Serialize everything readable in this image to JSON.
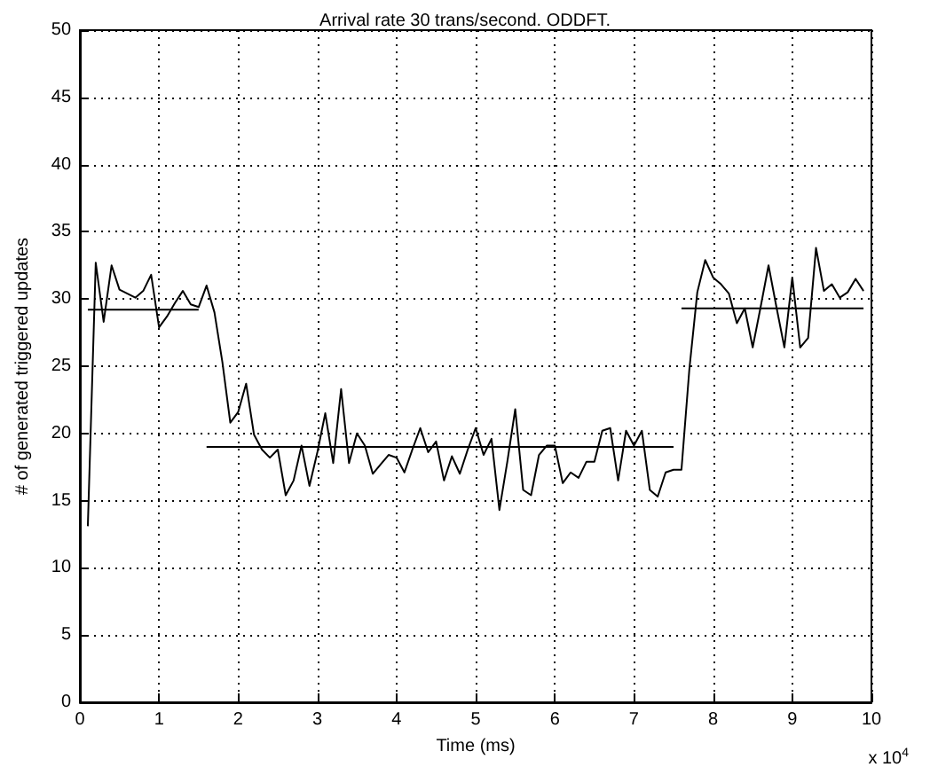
{
  "chart_data": {
    "type": "line",
    "title": "Arrival rate 30 trans/second. ODDFT.",
    "xlabel": "Time (ms)",
    "ylabel": "# of generated triggered updates",
    "annotations": [
      "x 10$^{4}$"
    ],
    "xlim": [
      0,
      10
    ],
    "xticks": [
      0,
      1,
      2,
      3,
      4,
      5,
      6,
      7,
      8,
      9,
      10
    ],
    "ylim": [
      0,
      50
    ],
    "yticks": [
      0,
      5,
      10,
      15,
      20,
      25,
      30,
      35,
      40,
      45,
      50
    ],
    "grid": true,
    "marker": "none",
    "line_style": "solid",
    "series": [
      {
        "color": "#000000",
        "x": [
          0.1,
          0.2,
          0.3,
          0.4,
          0.5,
          0.6,
          0.7,
          0.8,
          0.9,
          1.0,
          1.1,
          1.2,
          1.3,
          1.4,
          1.5,
          1.6,
          1.7,
          1.8,
          1.9,
          2.0,
          2.1,
          2.2,
          2.3,
          2.4,
          2.5,
          2.6,
          2.7,
          2.8,
          2.9,
          3.0,
          3.1,
          3.2,
          3.3,
          3.4,
          3.5,
          3.6,
          3.7,
          3.8,
          3.9,
          4.0,
          4.1,
          4.2,
          4.3,
          4.4,
          4.5,
          4.6,
          4.7,
          4.8,
          4.9,
          5.0,
          5.1,
          5.2,
          5.3,
          5.4,
          5.5,
          5.6,
          5.7,
          5.8,
          5.9,
          6.0,
          6.1,
          6.2,
          6.3,
          6.4,
          6.5,
          6.6,
          6.7,
          6.8,
          6.9,
          7.0,
          7.1,
          7.2,
          7.3,
          7.4,
          7.5,
          7.6,
          7.7,
          7.8,
          7.9,
          8.0,
          8.1,
          8.2,
          8.3,
          8.4,
          8.5,
          8.6,
          8.7,
          8.8,
          8.9,
          9.0,
          9.1,
          9.2,
          9.3,
          9.4,
          9.5,
          9.6,
          9.7,
          9.8,
          9.9
        ],
        "values": [
          13.1,
          32.7,
          28.3,
          32.5,
          30.7,
          30.4,
          30.1,
          30.6,
          31.8,
          27.9,
          28.7,
          29.7,
          30.6,
          29.6,
          29.4,
          31.0,
          29.0,
          25.3,
          20.8,
          21.6,
          23.7,
          19.9,
          18.8,
          18.2,
          18.8,
          15.4,
          16.5,
          19.1,
          16.1,
          18.6,
          21.5,
          17.8,
          23.3,
          17.8,
          20.0,
          19.1,
          17.0,
          17.7,
          18.4,
          18.2,
          17.1,
          18.8,
          20.4,
          18.6,
          19.4,
          16.5,
          18.3,
          17.0,
          18.8,
          20.4,
          18.4,
          19.6,
          14.3,
          17.9,
          21.8,
          15.8,
          15.4,
          18.4,
          19.1,
          19.1,
          16.3,
          17.1,
          16.7,
          17.9,
          17.9,
          20.2,
          20.4,
          16.5,
          20.2,
          19.1,
          20.2,
          15.8,
          15.3,
          17.1,
          17.3,
          17.3,
          24.8,
          30.5,
          32.9,
          31.6,
          31.1,
          30.4,
          28.2,
          29.3,
          26.4,
          29.4,
          32.5,
          29.4,
          26.4,
          31.6,
          26.4,
          27.1,
          33.8,
          30.6,
          31.1,
          30.1,
          30.5,
          31.5,
          30.6
        ]
      },
      {
        "color": "#000000",
        "x": [
          0.1,
          1.5
        ],
        "values": [
          29.2,
          29.2
        ]
      },
      {
        "color": "#000000",
        "x": [
          1.6,
          7.5
        ],
        "values": [
          19.0,
          19.0
        ]
      },
      {
        "color": "#000000",
        "x": [
          7.6,
          9.9
        ],
        "values": [
          29.3,
          29.3
        ]
      }
    ]
  }
}
